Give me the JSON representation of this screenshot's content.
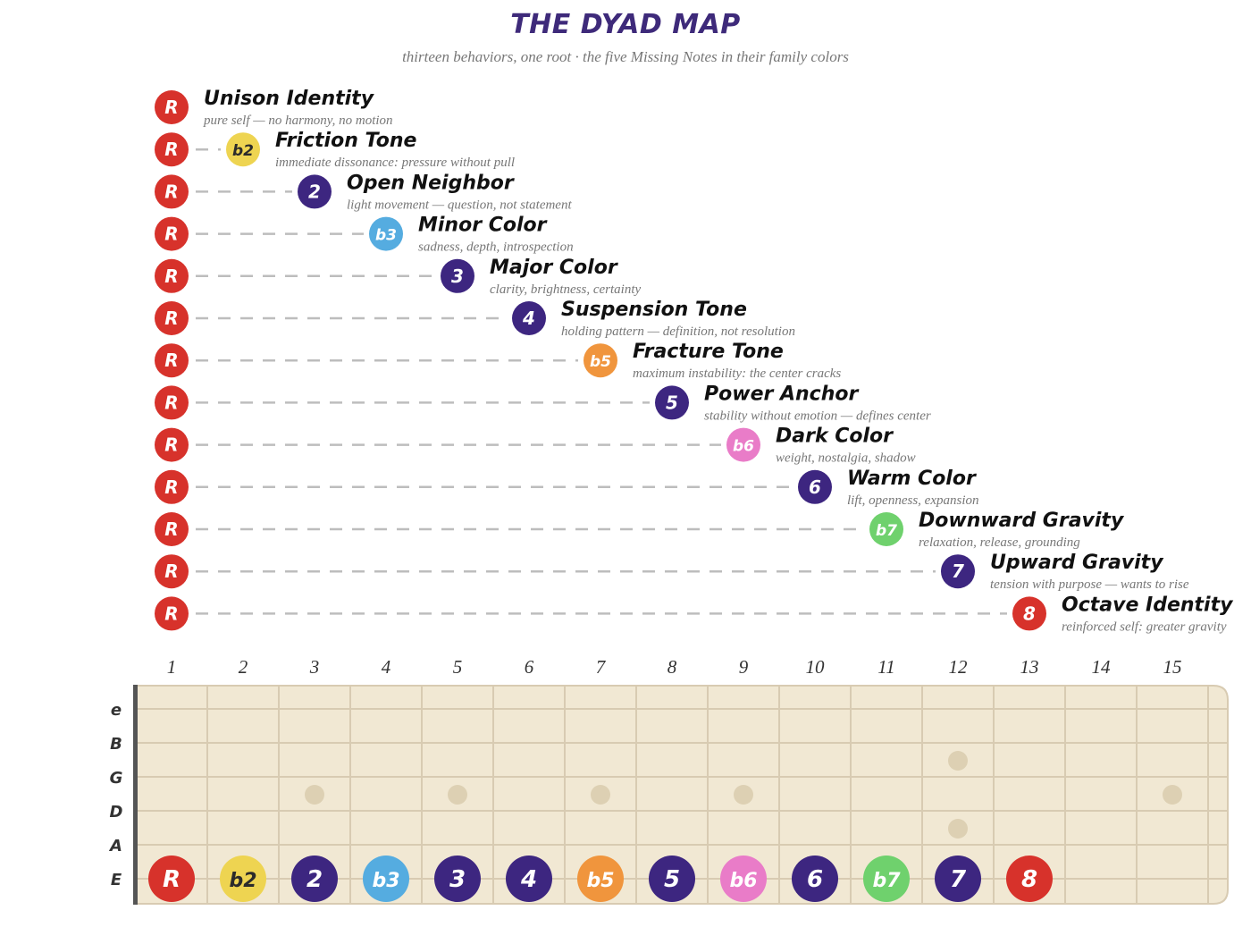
{
  "header": {
    "title": "THE DYAD MAP",
    "subtitle": "thirteen behaviors, one root · the five Missing Notes in their family colors"
  },
  "colors": {
    "root": "#d7322b",
    "friction": "#eed451",
    "purple": "#3d2680",
    "minor": "#55ace0",
    "fracture": "#f0953d",
    "dark": "#e97cc8",
    "downward": "#6fd16d",
    "fretboard": "#f1e8d3",
    "fret_line": "#d8cbb2",
    "inlay": "#ddd0b3",
    "dash": "#bdbdbd"
  },
  "root_label": "R",
  "dyads": [
    {
      "fret": 1,
      "label": "R",
      "color": "#d7322b",
      "text_color": "#ffffff",
      "name": "Unison Identity",
      "desc": "pure self — no harmony, no motion"
    },
    {
      "fret": 2,
      "label": "b2",
      "color": "#eed451",
      "text_color": "#2b2b2b",
      "name": "Friction Tone",
      "desc": "immediate dissonance: pressure without pull"
    },
    {
      "fret": 3,
      "label": "2",
      "color": "#3d2680",
      "text_color": "#ffffff",
      "name": "Open Neighbor",
      "desc": "light movement — question, not statement"
    },
    {
      "fret": 4,
      "label": "b3",
      "color": "#55ace0",
      "text_color": "#ffffff",
      "name": "Minor Color",
      "desc": "sadness, depth, introspection"
    },
    {
      "fret": 5,
      "label": "3",
      "color": "#3d2680",
      "text_color": "#ffffff",
      "name": "Major Color",
      "desc": "clarity, brightness, certainty"
    },
    {
      "fret": 6,
      "label": "4",
      "color": "#3d2680",
      "text_color": "#ffffff",
      "name": "Suspension Tone",
      "desc": "holding pattern — definition, not resolution"
    },
    {
      "fret": 7,
      "label": "b5",
      "color": "#f0953d",
      "text_color": "#ffffff",
      "name": "Fracture Tone",
      "desc": "maximum instability: the center cracks"
    },
    {
      "fret": 8,
      "label": "5",
      "color": "#3d2680",
      "text_color": "#ffffff",
      "name": "Power Anchor",
      "desc": "stability without emotion — defines center"
    },
    {
      "fret": 9,
      "label": "b6",
      "color": "#e97cc8",
      "text_color": "#ffffff",
      "name": "Dark Color",
      "desc": "weight, nostalgia, shadow"
    },
    {
      "fret": 10,
      "label": "6",
      "color": "#3d2680",
      "text_color": "#ffffff",
      "name": "Warm Color",
      "desc": "lift, openness, expansion"
    },
    {
      "fret": 11,
      "label": "b7",
      "color": "#6fd16d",
      "text_color": "#ffffff",
      "name": "Downward Gravity",
      "desc": "relaxation, release, grounding"
    },
    {
      "fret": 12,
      "label": "7",
      "color": "#3d2680",
      "text_color": "#ffffff",
      "name": "Upward Gravity",
      "desc": "tension with purpose — wants to rise"
    },
    {
      "fret": 13,
      "label": "8",
      "color": "#d7322b",
      "text_color": "#ffffff",
      "name": "Octave Identity",
      "desc": "reinforced self: greater gravity"
    }
  ],
  "fretboard": {
    "fret_numbers": [
      "1",
      "2",
      "3",
      "4",
      "5",
      "6",
      "7",
      "8",
      "9",
      "10",
      "11",
      "12",
      "13",
      "14",
      "15"
    ],
    "strings": [
      "e",
      "B",
      "G",
      "D",
      "A",
      "E"
    ],
    "single_inlay_frets": [
      3,
      5,
      7,
      9,
      15
    ],
    "double_inlay_frets": [
      12
    ]
  }
}
